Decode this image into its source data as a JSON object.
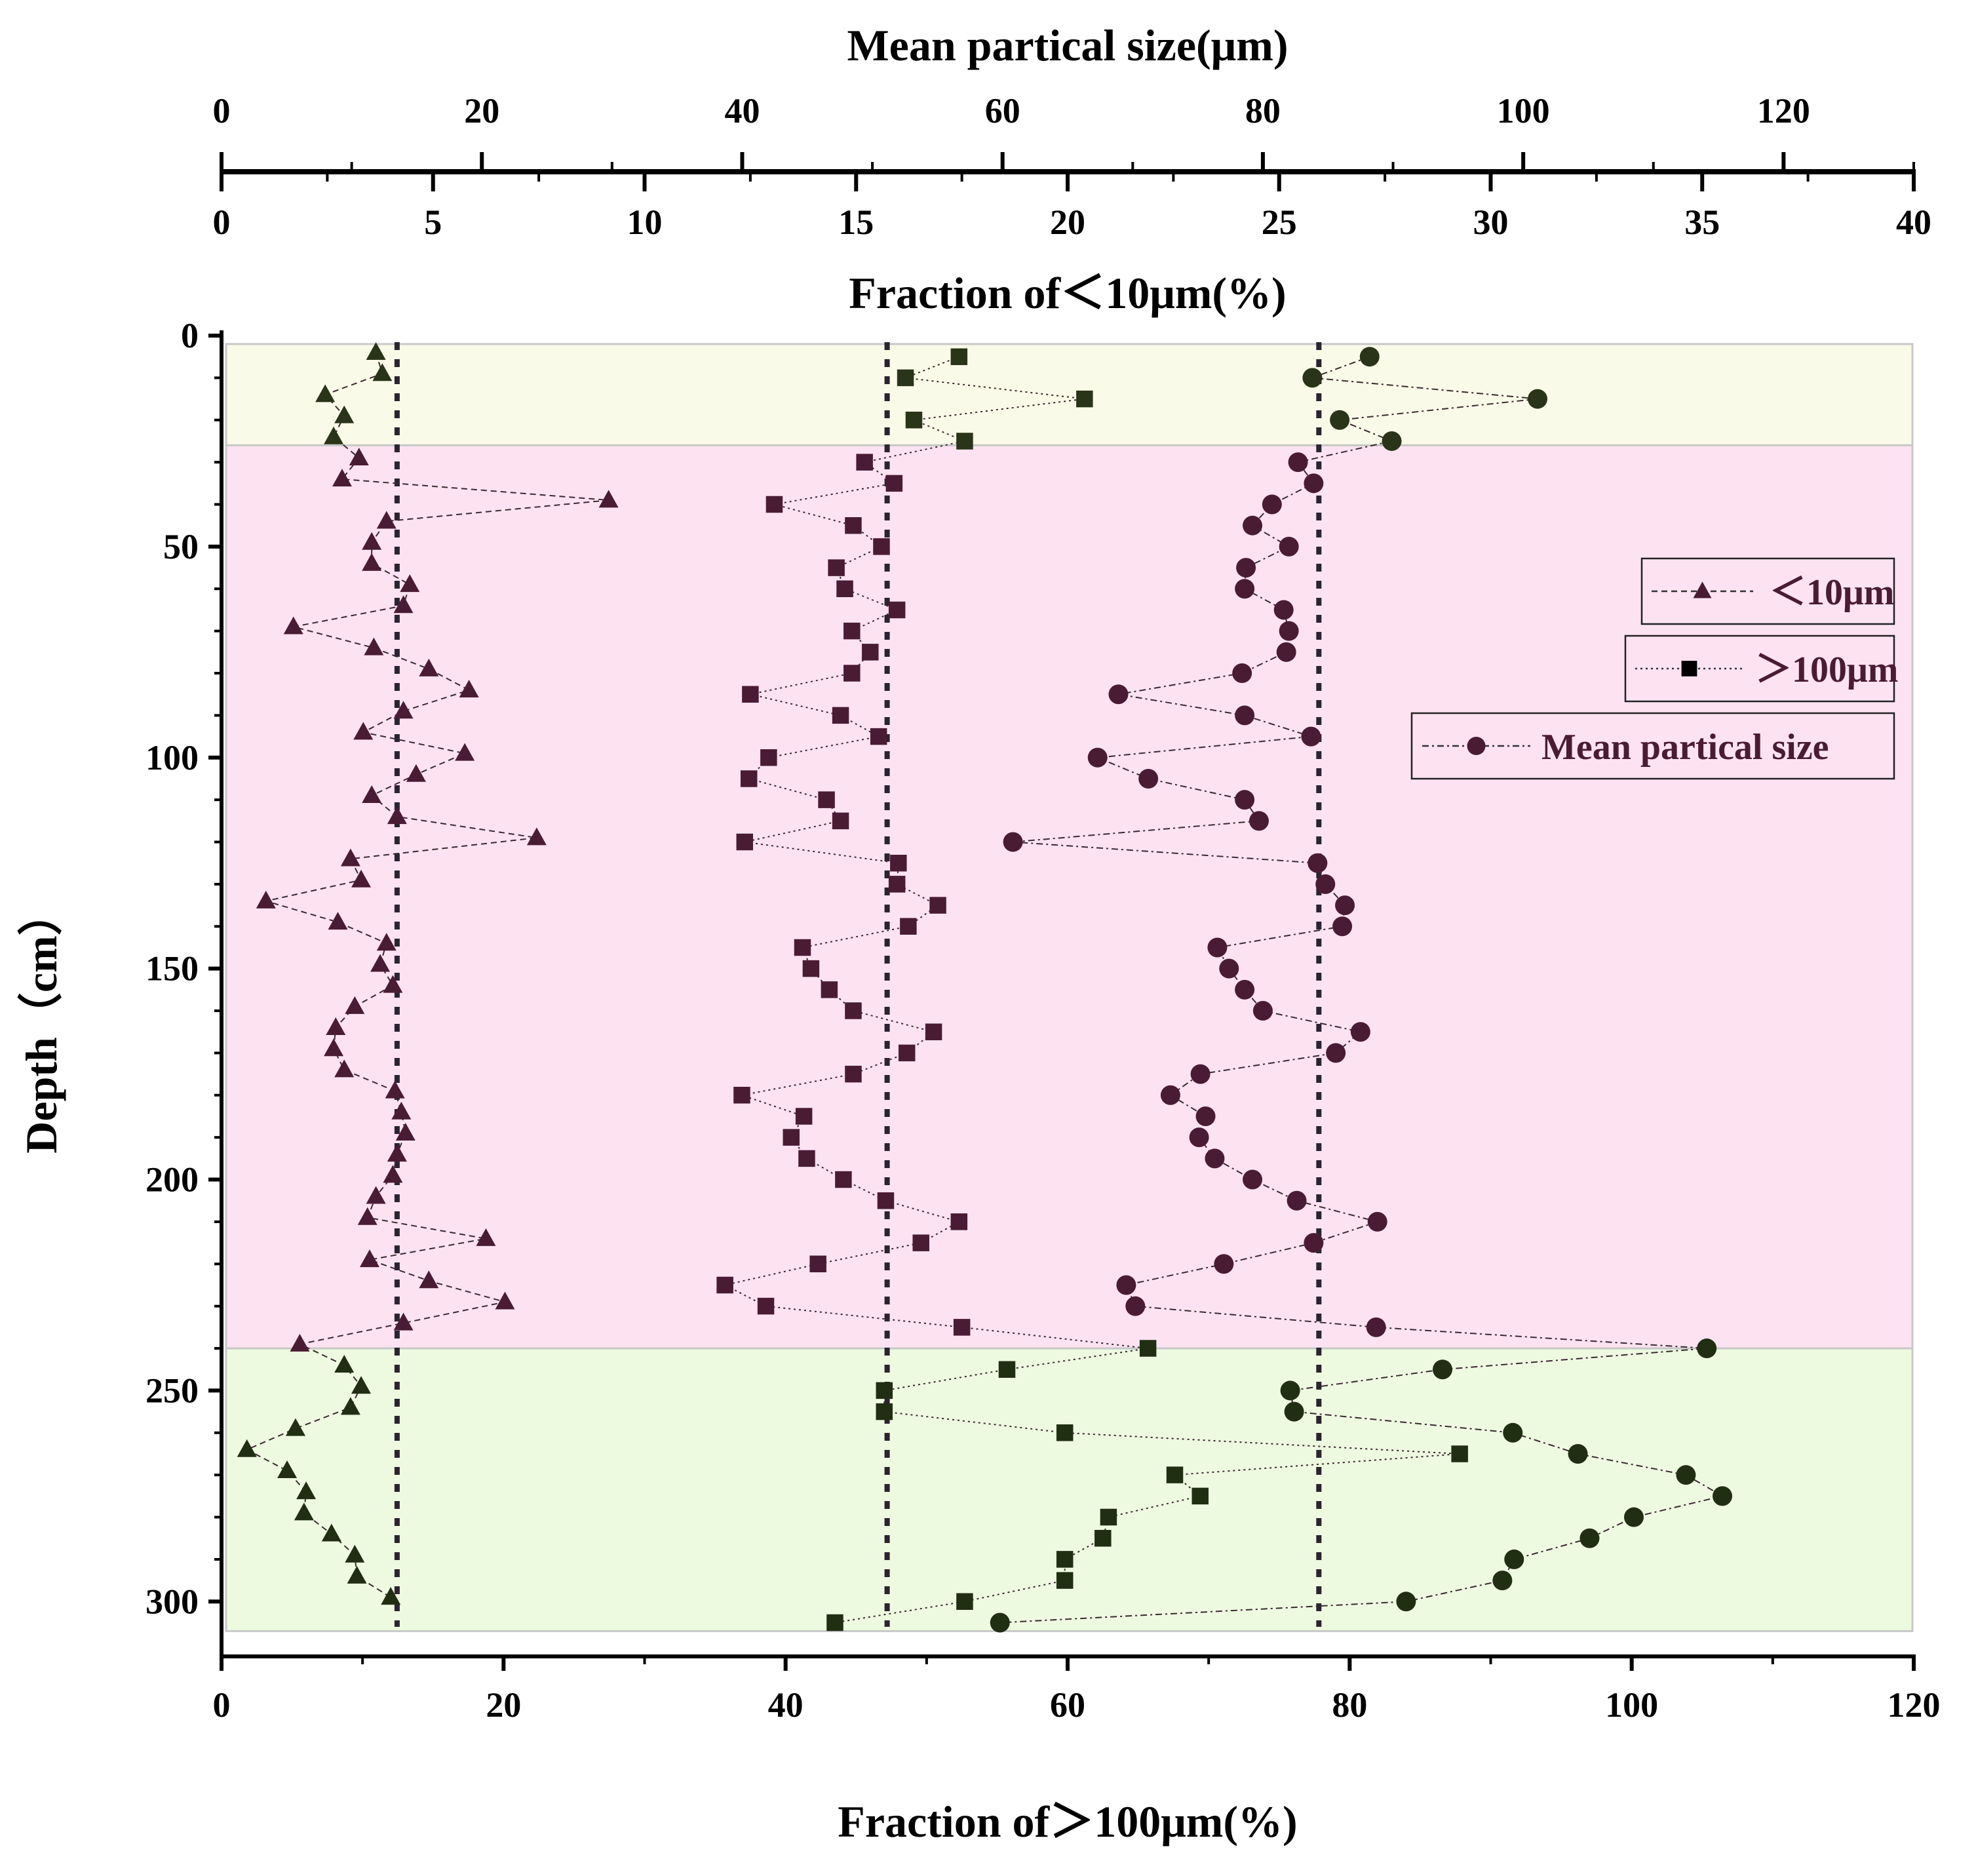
{
  "chart_data": {
    "type": "scatter",
    "axes": {
      "top_outer": {
        "label": "Mean partical size(μm)",
        "range": [
          0,
          130
        ],
        "ticks": [
          "0",
          "20",
          "40",
          "60",
          "80",
          "100",
          "120"
        ],
        "tick_values": [
          0,
          20,
          40,
          60,
          80,
          100,
          120
        ]
      },
      "top_inner": {
        "label": "Fraction of＜10μm(%)",
        "range": [
          0,
          40
        ],
        "ticks": [
          "0",
          "5",
          "10",
          "15",
          "20",
          "25",
          "30",
          "35",
          "40"
        ],
        "tick_values": [
          0,
          5,
          10,
          15,
          20,
          25,
          30,
          35,
          40
        ]
      },
      "bottom": {
        "label": "Fraction of＞100μm(%)",
        "range": [
          0,
          120
        ],
        "ticks": [
          "0",
          "20",
          "40",
          "60",
          "80",
          "100",
          "120"
        ],
        "tick_values": [
          0,
          20,
          40,
          60,
          80,
          100,
          120
        ]
      },
      "left": {
        "label": "Depth（cm）",
        "range": [
          0,
          313
        ],
        "reversed": true,
        "ticks": [
          "0",
          "50",
          "100",
          "150",
          "200",
          "250",
          "300"
        ],
        "tick_values": [
          0,
          50,
          100,
          150,
          200,
          250,
          300
        ]
      }
    },
    "zones": [
      {
        "from": 2,
        "to": 26,
        "color": "#fafae8"
      },
      {
        "from": 26,
        "to": 240,
        "color": "#fde3f1"
      },
      {
        "from": 240,
        "to": 307,
        "color": "#edfae0"
      }
    ],
    "reference_lines": [
      {
        "axis": "top_inner",
        "value": 4.15
      },
      {
        "axis": "bottom",
        "value": 47.2
      },
      {
        "axis": "top_outer",
        "value": 84.3
      }
    ],
    "series": [
      {
        "name": "＜10μm",
        "axis": "top_inner",
        "marker": "triangle",
        "line": "dashed",
        "x": [
          3.65,
          3.8,
          2.45,
          2.9,
          2.65,
          3.25,
          2.85,
          9.15,
          3.9,
          3.55,
          3.55,
          4.45,
          4.3,
          1.7,
          3.6,
          4.9,
          5.85,
          4.3,
          3.35,
          5.75,
          4.6,
          3.55,
          4.15,
          7.45,
          3.05,
          3.3,
          1.05,
          2.75,
          3.9,
          3.75,
          4.05,
          3.15,
          2.7,
          2.65,
          2.9,
          4.1,
          4.25,
          4.35,
          4.15,
          4.05,
          3.65,
          3.45,
          6.25,
          3.5,
          4.9,
          6.7,
          4.3,
          1.85,
          2.9,
          3.3,
          3.05,
          1.75,
          0.6,
          1.55,
          2.0,
          1.95,
          2.6,
          3.15,
          3.2,
          4.0
        ],
        "y": [
          4,
          9,
          14,
          19,
          24,
          29,
          34,
          39,
          44,
          49,
          54,
          59,
          64,
          69,
          74,
          79,
          84,
          89,
          94,
          99,
          104,
          109,
          114,
          119,
          124,
          129,
          134,
          139,
          144,
          149,
          154,
          159,
          164,
          169,
          174,
          179,
          184,
          189,
          194,
          199,
          204,
          209,
          214,
          219,
          224,
          229,
          234,
          239,
          244,
          249,
          254,
          259,
          264,
          269,
          274,
          279,
          284,
          289,
          294,
          299
        ]
      },
      {
        "name": "＞100μm",
        "axis": "bottom",
        "marker": "square",
        "line": "dotted",
        "x": [
          52.3,
          48.5,
          61.2,
          49.1,
          52.7,
          45.6,
          47.7,
          39.2,
          44.8,
          46.8,
          43.6,
          44.2,
          47.9,
          44.7,
          46.0,
          44.7,
          37.5,
          43.9,
          46.6,
          38.8,
          37.4,
          42.9,
          43.9,
          37.1,
          48.0,
          47.9,
          50.8,
          48.7,
          41.2,
          41.8,
          43.1,
          44.8,
          50.5,
          48.6,
          44.8,
          36.9,
          41.3,
          40.4,
          41.5,
          44.1,
          47.1,
          52.3,
          49.6,
          42.3,
          35.7,
          38.6,
          52.5,
          65.7,
          55.7,
          47.0,
          47.0,
          59.8,
          87.8,
          67.6,
          69.4,
          62.9,
          62.5,
          59.8,
          59.8,
          52.7,
          43.5
        ],
        "y": [
          5,
          10,
          15,
          20,
          25,
          30,
          35,
          40,
          45,
          50,
          55,
          60,
          65,
          70,
          75,
          80,
          85,
          90,
          95,
          100,
          105,
          110,
          115,
          120,
          125,
          130,
          135,
          140,
          145,
          150,
          155,
          160,
          165,
          170,
          175,
          180,
          185,
          190,
          195,
          200,
          205,
          210,
          215,
          220,
          225,
          230,
          235,
          240,
          245,
          250,
          255,
          260,
          265,
          270,
          275,
          280,
          285,
          290,
          295,
          300,
          305
        ]
      },
      {
        "name": "Mean partical size",
        "axis": "top_outer",
        "marker": "circle",
        "line": "dashdot",
        "x": [
          88.2,
          83.8,
          101.1,
          85.9,
          89.9,
          82.7,
          83.9,
          80.7,
          79.2,
          82.0,
          78.7,
          78.6,
          81.6,
          82.0,
          81.8,
          78.4,
          68.9,
          78.6,
          83.7,
          67.3,
          71.2,
          78.6,
          79.7,
          60.8,
          84.2,
          84.8,
          86.3,
          86.1,
          76.5,
          77.4,
          78.6,
          80.0,
          87.5,
          85.6,
          75.2,
          72.9,
          75.6,
          75.1,
          76.3,
          79.2,
          82.6,
          88.8,
          83.9,
          77.0,
          69.5,
          70.2,
          88.7,
          114.1,
          93.8,
          82.1,
          82.4,
          99.2,
          104.2,
          112.5,
          115.3,
          108.5,
          105.1,
          99.3,
          98.4,
          91.0,
          59.8
        ],
        "y": [
          5,
          10,
          15,
          20,
          25,
          30,
          35,
          40,
          45,
          50,
          55,
          60,
          65,
          70,
          75,
          80,
          85,
          90,
          95,
          100,
          105,
          110,
          115,
          120,
          125,
          130,
          135,
          140,
          145,
          150,
          155,
          160,
          165,
          170,
          175,
          180,
          185,
          190,
          195,
          200,
          205,
          210,
          215,
          220,
          225,
          230,
          235,
          240,
          245,
          250,
          255,
          260,
          265,
          270,
          275,
          280,
          285,
          290,
          295,
          300,
          305
        ]
      }
    ],
    "colors": {
      "upper_points": "#2a3418",
      "middle_points": "#4a1c34",
      "lower_points": "#202e12",
      "reference_line": "#2a2430"
    },
    "legend": {
      "placement": "right",
      "entries": [
        "＜10μm",
        "＞100μm",
        "Mean partical size"
      ]
    }
  }
}
